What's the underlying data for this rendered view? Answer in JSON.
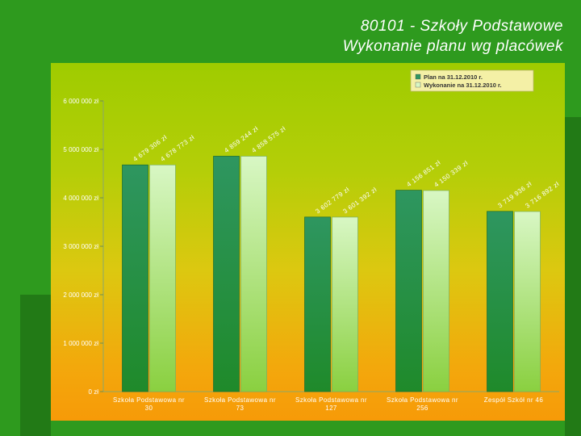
{
  "slide": {
    "title_line1": "80101 - Szkoły Podstawowe",
    "title_line2": "Wykonanie planu wg placówek"
  },
  "colors": {
    "plan_bar": "#2e9660",
    "execution_bar": "#d8f7c4",
    "background": "#2e9a1e"
  },
  "chart_data": {
    "type": "bar",
    "categories": [
      [
        "Szkoła Podstawowa nr",
        "30"
      ],
      [
        "Szkoła Podstawowa nr",
        "73"
      ],
      [
        "Szkoła Podstawowa nr",
        "127"
      ],
      [
        "Szkoła Podstawowa nr",
        "256"
      ],
      [
        "Zespół Szkół nr 46"
      ]
    ],
    "series": [
      {
        "name": "Plan na 31.12.2010 r.",
        "values": [
          4679306,
          4859244,
          3602779,
          4156851,
          3719936
        ],
        "labels": [
          "4 679 306 zł",
          "4 859 244 zł",
          "3 602 779 zł",
          "4 156 851 zł",
          "3 719 936 zł"
        ]
      },
      {
        "name": "Wykonanie na 31.12.2010 r.",
        "values": [
          4678773,
          4858575,
          3601392,
          4150339,
          3716892
        ],
        "labels": [
          "4 678 773 zł",
          "4 858 575 zł",
          "3 601 392 zł",
          "4 150 339 zł",
          "3 716 892 zł"
        ]
      }
    ],
    "y_ticks": [
      0,
      1000000,
      2000000,
      3000000,
      4000000,
      5000000,
      6000000
    ],
    "y_tick_labels": [
      "0 zł",
      "1 000 000 zł",
      "2 000 000 zł",
      "3 000 000 zł",
      "4 000 000 zł",
      "5 000 000 zł",
      "6 000 000 zł"
    ],
    "ylim": [
      0,
      6000000
    ],
    "grid": false,
    "legend_position": "top-right",
    "title": "",
    "xlabel": "",
    "ylabel": ""
  }
}
